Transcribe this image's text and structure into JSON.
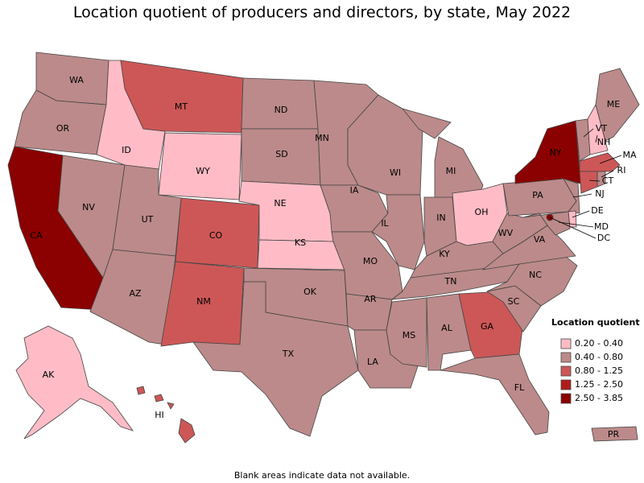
{
  "title": "Location quotient of producers and directors, by state, May 2022",
  "legend": {
    "title": "Location quotient",
    "items": [
      {
        "label": "0.20 - 0.40",
        "color": "#ffbcc6"
      },
      {
        "label": "0.40 - 0.80",
        "color": "#bc8a8a"
      },
      {
        "label": "0.80 - 1.25",
        "color": "#cd5757"
      },
      {
        "label": "1.25 - 2.50",
        "color": "#b01c1c"
      },
      {
        "label": "2.50 - 3.85",
        "color": "#8b0000"
      }
    ]
  },
  "states": [
    {
      "label": "WA",
      "color": "#bc8a8a"
    },
    {
      "label": "OR",
      "color": "#bc8a8a"
    },
    {
      "label": "CA",
      "color": "#8b0000"
    },
    {
      "label": "NV",
      "color": "#bc8a8a"
    },
    {
      "label": "ID",
      "color": "#ffbcc6"
    },
    {
      "label": "MT",
      "color": "#cd5757"
    },
    {
      "label": "WY",
      "color": "#ffbcc6"
    },
    {
      "label": "UT",
      "color": "#bc8a8a"
    },
    {
      "label": "AZ",
      "color": "#bc8a8a"
    },
    {
      "label": "CO",
      "color": "#cd5757"
    },
    {
      "label": "NM",
      "color": "#cd5757"
    },
    {
      "label": "ND",
      "color": "#bc8a8a"
    },
    {
      "label": "SD",
      "color": "#bc8a8a"
    },
    {
      "label": "NE",
      "color": "#ffbcc6"
    },
    {
      "label": "KS",
      "color": "#ffbcc6"
    },
    {
      "label": "OK",
      "color": "#bc8a8a"
    },
    {
      "label": "TX",
      "color": "#bc8a8a"
    },
    {
      "label": "MN",
      "color": "#bc8a8a"
    },
    {
      "label": "IA",
      "color": "#bc8a8a"
    },
    {
      "label": "MO",
      "color": "#bc8a8a"
    },
    {
      "label": "AR",
      "color": "#bc8a8a"
    },
    {
      "label": "LA",
      "color": "#bc8a8a"
    },
    {
      "label": "WI",
      "color": "#bc8a8a"
    },
    {
      "label": "IL",
      "color": "#bc8a8a"
    },
    {
      "label": "MI",
      "color": "#bc8a8a"
    },
    {
      "label": "IN",
      "color": "#bc8a8a"
    },
    {
      "label": "OH",
      "color": "#ffbcc6"
    },
    {
      "label": "KY",
      "color": "#bc8a8a"
    },
    {
      "label": "TN",
      "color": "#bc8a8a"
    },
    {
      "label": "MS",
      "color": "#bc8a8a"
    },
    {
      "label": "AL",
      "color": "#bc8a8a"
    },
    {
      "label": "GA",
      "color": "#cd5757"
    },
    {
      "label": "FL",
      "color": "#bc8a8a"
    },
    {
      "label": "SC",
      "color": "#bc8a8a"
    },
    {
      "label": "NC",
      "color": "#bc8a8a"
    },
    {
      "label": "VA",
      "color": "#bc8a8a"
    },
    {
      "label": "WV",
      "color": "#bc8a8a"
    },
    {
      "label": "PA",
      "color": "#bc8a8a"
    },
    {
      "label": "NY",
      "color": "#8b0000"
    },
    {
      "label": "VT",
      "color": "#bc8a8a"
    },
    {
      "label": "NH",
      "color": "#ffbcc6"
    },
    {
      "label": "ME",
      "color": "#bc8a8a"
    },
    {
      "label": "MA",
      "color": "#cd5757"
    },
    {
      "label": "RI",
      "color": "#bc8a8a"
    },
    {
      "label": "CT",
      "color": "#cd5757"
    },
    {
      "label": "NJ",
      "color": "#bc8a8a"
    },
    {
      "label": "DE",
      "color": "#ffbcc6"
    },
    {
      "label": "MD",
      "color": "#bc8a8a"
    },
    {
      "label": "DC",
      "color": "#8b0000"
    },
    {
      "label": "AK",
      "color": "#ffbcc6"
    },
    {
      "label": "HI",
      "color": "#cd5757"
    },
    {
      "label": "PR",
      "color": "#bc8a8a"
    }
  ],
  "footnote": "Blank areas indicate data not available."
}
